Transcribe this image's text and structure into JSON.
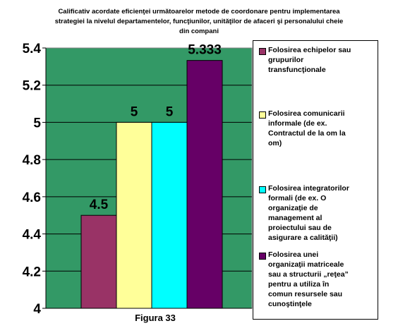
{
  "chart_data": {
    "type": "bar",
    "title_lines": [
      "Calificativ acordate eficienţei următoarelor metode de coordonare pentru implementarea",
      "strategiei la nivelul departamentelor, funcţiunilor, unităţilor de afaceri şi personalului cheie",
      "din compani"
    ],
    "xlabel": "Figura 33",
    "ylabel": "",
    "ylim": [
      4,
      5.4
    ],
    "yticks": [
      "4",
      "4.2",
      "4.4",
      "4.6",
      "4.8",
      "5",
      "5.2",
      "5.4"
    ],
    "plot_background": "#339966",
    "grid": true,
    "legend_position": "right",
    "series": [
      {
        "name": "Folosirea echipelor sau grupurilor transfuncţionale",
        "value": 4.5,
        "value_label": "4.5",
        "color": "#993366",
        "legend_lines": [
          "Folosirea echipelor sau",
          "grupurilor",
          "transfuncţionale"
        ]
      },
      {
        "name": "Folosirea comunicarii informale (de ex. Contractul de la om la om)",
        "value": 5,
        "value_label": "5",
        "color": "#FFFF99",
        "legend_lines": [
          "Folosirea comunicarii",
          "informale (de ex.",
          "Contractul de la om la",
          "om)"
        ]
      },
      {
        "name": "Folosirea integratorilor formali (de ex. O organizaţie de management al proiectului sau de asigurare a calităţii)",
        "value": 5,
        "value_label": "5",
        "color": "#00FFFF",
        "legend_lines": [
          "Folosirea  integratorilor",
          "formali (de ex. O",
          "organizaţie de",
          "management al",
          "proiectului sau de",
          "asigurare a calităţii)"
        ]
      },
      {
        "name": "Folosirea unei organizaţii matriceale sau a structurii „reţea” pentru a utiliza în comun resursele sau cunoştinţele",
        "value": 5.333,
        "value_label": "5.333",
        "color": "#660066",
        "legend_lines": [
          "Folosirea unei",
          "organizaţii matriceale",
          "sau a structurii „reţea”",
          "pentru a utiliza în",
          "comun resursele sau",
          "cunoştinţele"
        ]
      }
    ]
  }
}
